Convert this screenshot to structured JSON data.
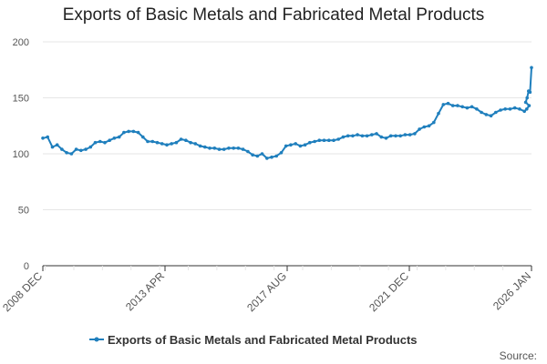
{
  "chart_data": {
    "type": "line",
    "title": "Exports of Basic Metals and Fabricated Metal Products",
    "xlabel": "",
    "ylabel": "",
    "ylim": [
      0,
      200
    ],
    "y_ticks": [
      "0",
      "50",
      "100",
      "150",
      "200"
    ],
    "x_tick_labels": [
      "2008 DEC",
      "2013 APR",
      "2017 AUG",
      "2021 DEC",
      "2026 JAN"
    ],
    "x_range": [
      "2008-12",
      "2026-01"
    ],
    "legend_position": "bottom",
    "grid": true,
    "colors": {
      "line": "#1f7fbd",
      "grid": "#e6e6e6",
      "axis": "#333333"
    },
    "source_label": "Source:",
    "series": [
      {
        "name": "Exports of Basic Metals and Fabricated Metal Products",
        "points": [
          [
            "2008-12",
            114
          ],
          [
            "2009-02",
            115
          ],
          [
            "2009-04",
            106
          ],
          [
            "2009-06",
            108
          ],
          [
            "2009-08",
            104
          ],
          [
            "2009-10",
            101
          ],
          [
            "2009-12",
            100
          ],
          [
            "2010-02",
            104
          ],
          [
            "2010-04",
            103
          ],
          [
            "2010-06",
            104
          ],
          [
            "2010-08",
            106
          ],
          [
            "2010-10",
            110
          ],
          [
            "2010-12",
            111
          ],
          [
            "2011-02",
            110
          ],
          [
            "2011-04",
            112
          ],
          [
            "2011-06",
            114
          ],
          [
            "2011-08",
            115
          ],
          [
            "2011-10",
            119
          ],
          [
            "2011-12",
            120
          ],
          [
            "2012-02",
            120
          ],
          [
            "2012-04",
            119
          ],
          [
            "2012-06",
            115
          ],
          [
            "2012-08",
            111
          ],
          [
            "2012-10",
            111
          ],
          [
            "2012-12",
            110
          ],
          [
            "2013-02",
            109
          ],
          [
            "2013-04",
            108
          ],
          [
            "2013-06",
            109
          ],
          [
            "2013-08",
            110
          ],
          [
            "2013-10",
            113
          ],
          [
            "2013-12",
            112
          ],
          [
            "2014-02",
            110
          ],
          [
            "2014-04",
            109
          ],
          [
            "2014-06",
            107
          ],
          [
            "2014-08",
            106
          ],
          [
            "2014-10",
            105
          ],
          [
            "2014-12",
            105
          ],
          [
            "2015-02",
            104
          ],
          [
            "2015-04",
            104
          ],
          [
            "2015-06",
            105
          ],
          [
            "2015-08",
            105
          ],
          [
            "2015-10",
            105
          ],
          [
            "2015-12",
            104
          ],
          [
            "2016-02",
            102
          ],
          [
            "2016-04",
            99
          ],
          [
            "2016-06",
            98
          ],
          [
            "2016-08",
            100
          ],
          [
            "2016-10",
            96
          ],
          [
            "2016-12",
            97
          ],
          [
            "2017-02",
            98
          ],
          [
            "2017-04",
            101
          ],
          [
            "2017-06",
            107
          ],
          [
            "2017-08",
            108
          ],
          [
            "2017-10",
            109
          ],
          [
            "2017-12",
            107
          ],
          [
            "2018-02",
            108
          ],
          [
            "2018-04",
            110
          ],
          [
            "2018-06",
            111
          ],
          [
            "2018-08",
            112
          ],
          [
            "2018-10",
            112
          ],
          [
            "2018-12",
            112
          ],
          [
            "2019-02",
            112
          ],
          [
            "2019-04",
            113
          ],
          [
            "2019-06",
            115
          ],
          [
            "2019-08",
            116
          ],
          [
            "2019-10",
            116
          ],
          [
            "2019-12",
            117
          ],
          [
            "2020-02",
            116
          ],
          [
            "2020-04",
            116
          ],
          [
            "2020-06",
            117
          ],
          [
            "2020-08",
            118
          ],
          [
            "2020-10",
            115
          ],
          [
            "2020-12",
            114
          ],
          [
            "2021-02",
            116
          ],
          [
            "2021-04",
            116
          ],
          [
            "2021-06",
            116
          ],
          [
            "2021-08",
            117
          ],
          [
            "2021-10",
            117
          ],
          [
            "2021-12",
            118
          ],
          [
            "2022-02",
            122
          ],
          [
            "2022-04",
            124
          ],
          [
            "2022-06",
            125
          ],
          [
            "2022-08",
            128
          ],
          [
            "2022-10",
            136
          ],
          [
            "2022-12",
            144
          ],
          [
            "2023-02",
            145
          ],
          [
            "2023-04",
            143
          ],
          [
            "2023-06",
            143
          ],
          [
            "2023-08",
            142
          ],
          [
            "2023-10",
            141
          ],
          [
            "2023-12",
            142
          ],
          [
            "2024-02",
            140
          ],
          [
            "2024-04",
            137
          ],
          [
            "2024-06",
            135
          ],
          [
            "2024-08",
            134
          ],
          [
            "2024-10",
            137
          ],
          [
            "2024-12",
            139
          ],
          [
            "2025-02",
            140
          ],
          [
            "2025-04",
            140
          ],
          [
            "2025-06",
            141
          ],
          [
            "2025-08",
            140
          ],
          [
            "2025-10",
            138
          ],
          [
            "2025-11",
            140
          ],
          [
            "2025-12",
            143
          ],
          [
            "2026-01",
            146
          ],
          [
            "2026-01",
            150
          ],
          [
            "2026-01",
            156
          ],
          [
            "2026-01",
            155
          ],
          [
            "2026-01",
            177
          ]
        ]
      }
    ]
  }
}
